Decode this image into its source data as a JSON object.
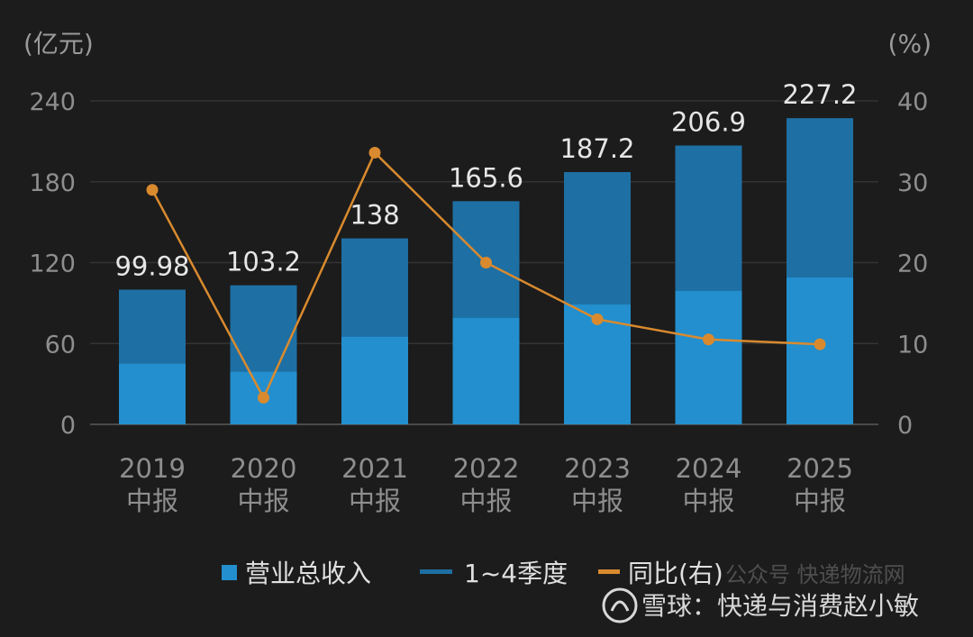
{
  "chart_data": {
    "type": "bar",
    "categories": [
      [
        "2019",
        "中报"
      ],
      [
        "2020",
        "中报"
      ],
      [
        "2021",
        "中报"
      ],
      [
        "2022",
        "中报"
      ],
      [
        "2023",
        "中报"
      ],
      [
        "2024",
        "中报"
      ],
      [
        "2025",
        "中报"
      ]
    ],
    "left_unit": "(亿元)",
    "right_unit": "(%)",
    "left_ticks": [
      0,
      60,
      120,
      180,
      240
    ],
    "right_ticks": [
      0,
      10,
      20,
      30,
      40
    ],
    "ylim": [
      0,
      240
    ],
    "y2lim": [
      0,
      40
    ],
    "series": [
      {
        "name": "营业总收入",
        "kind": "bar",
        "values": [
          99.98,
          103.2,
          138,
          165.6,
          187.2,
          206.9,
          227.2
        ],
        "labels": [
          "99.98",
          "103.2",
          "138",
          "165.6",
          "187.2",
          "206.9",
          "227.2"
        ],
        "color": "#1e6fa3"
      },
      {
        "name": "1~4季度",
        "kind": "bar-lower-segment",
        "values": [
          45,
          39,
          65,
          79,
          89,
          99,
          109
        ],
        "color": "#238fce"
      },
      {
        "name": "同比(右)",
        "kind": "line",
        "axis": "right",
        "values": [
          29,
          3.3,
          33.6,
          20,
          13,
          10.5,
          9.9
        ],
        "color": "#d98a2e"
      }
    ],
    "grid": true,
    "legend_position": "bottom"
  },
  "legend": [
    {
      "label": "营业总收入",
      "type": "square",
      "color": "#238fce"
    },
    {
      "label": "1~4季度",
      "type": "dash",
      "color": "#1e6fa3"
    },
    {
      "label": "同比(右)",
      "type": "dash",
      "color": "#d98a2e"
    }
  ],
  "watermark": {
    "brand_mark": "雪球",
    "text": "雪球：快递与消费赵小敏",
    "faint_text": "公众号 快递物流网"
  }
}
